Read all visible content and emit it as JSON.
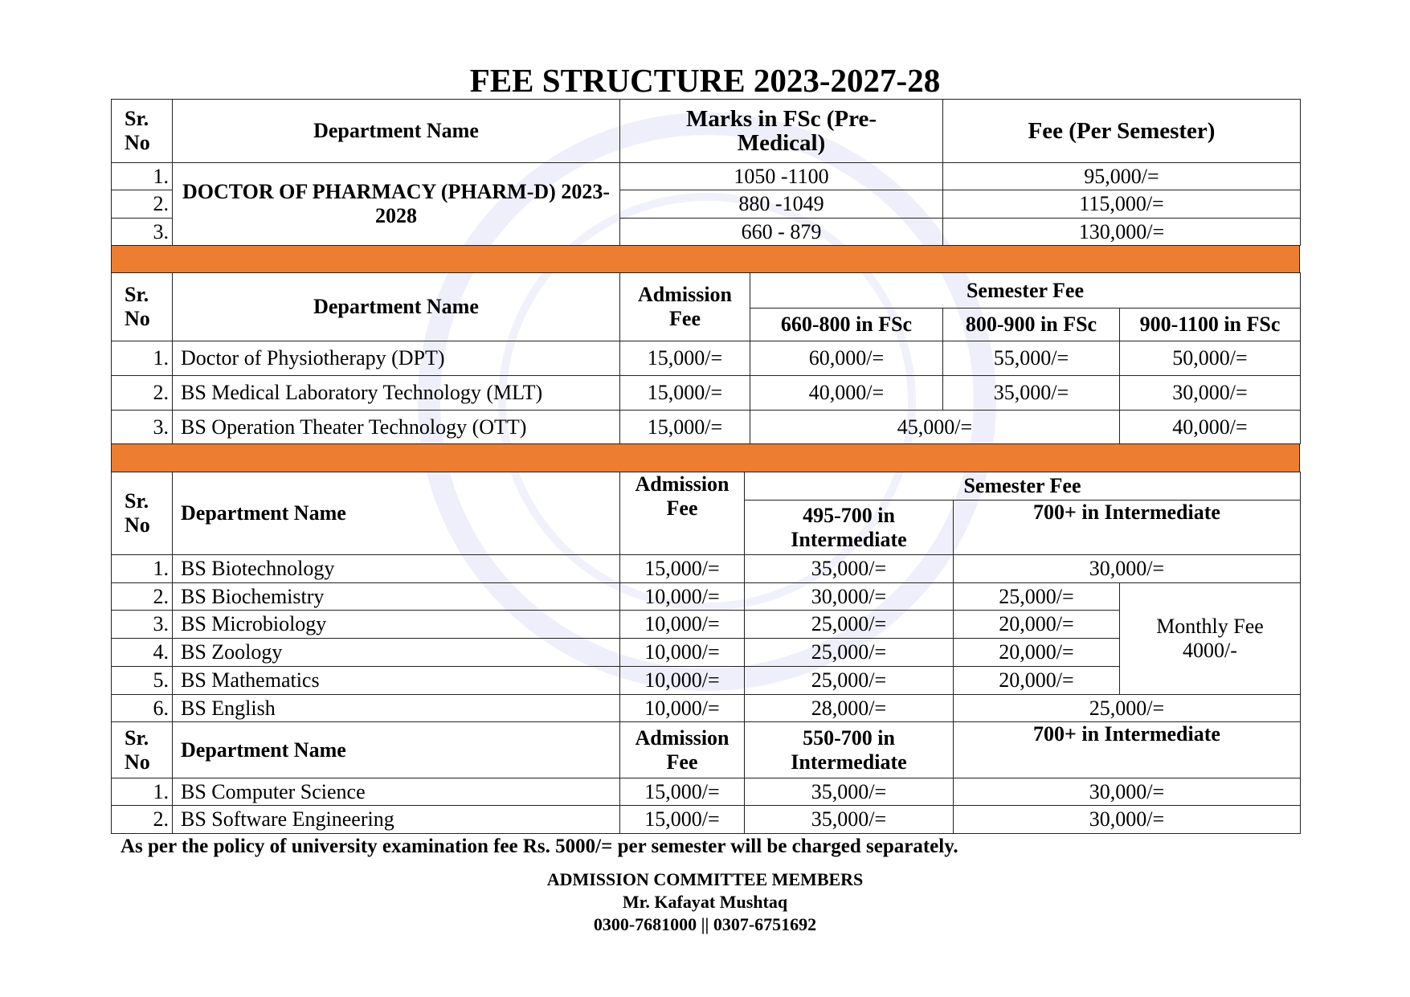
{
  "title": "FEE STRUCTURE 2023-2027-28",
  "colors": {
    "band": "#ED7D31"
  },
  "section1": {
    "headers": {
      "sr": "Sr. No",
      "dept": "Department Name",
      "marks": "Marks in FSc (Pre-Medical)",
      "fee": "Fee (Per Semester)"
    },
    "department": "DOCTOR OF PHARMACY (PHARM-D) 2023-2028",
    "rows": [
      {
        "sr": "1.",
        "marks": "1050 -1100",
        "fee": "95,000/="
      },
      {
        "sr": "2.",
        "marks": "880 -1049",
        "fee": "115,000/="
      },
      {
        "sr": "3.",
        "marks": "660 - 879",
        "fee": "130,000/="
      }
    ]
  },
  "section2": {
    "headers": {
      "sr": "Sr. No",
      "dept": "Department Name",
      "admission": "Admission Fee",
      "semester": "Semester Fee",
      "band1": "660-800 in FSc",
      "band2": "800-900 in FSc",
      "band3": "900-1100 in FSc"
    },
    "rows": [
      {
        "sr": "1.",
        "dept": "Doctor of Physiotherapy (DPT)",
        "admission": "15,000/=",
        "b1": "60,000/=",
        "b2": "55,000/=",
        "b3": "50,000/="
      },
      {
        "sr": "2.",
        "dept": "BS Medical Laboratory Technology (MLT)",
        "admission": "15,000/=",
        "b1": "40,000/=",
        "b2": "35,000/=",
        "b3": "30,000/="
      },
      {
        "sr": "3.",
        "dept": "BS Operation Theater Technology (OTT)",
        "admission": "15,000/=",
        "b12": "45,000/=",
        "b3": "40,000/="
      }
    ]
  },
  "section3": {
    "headers": {
      "sr": "Sr. No",
      "dept": "Department Name",
      "admission": "Admission Fee",
      "semester": "Semester Fee",
      "band1": "495-700 in Intermediate",
      "band2": "700+ in Intermediate"
    },
    "rows": [
      {
        "sr": "1.",
        "dept": "BS Biotechnology",
        "admission": "15,000/=",
        "b1": "35,000/=",
        "b2": "30,000/="
      },
      {
        "sr": "2.",
        "dept": "BS Biochemistry",
        "admission": "10,000/=",
        "b1": "30,000/=",
        "b2": "25,000/="
      },
      {
        "sr": "3.",
        "dept": "BS Microbiology",
        "admission": "10,000/=",
        "b1": "25,000/=",
        "b2": "20,000/="
      },
      {
        "sr": "4.",
        "dept": "BS Zoology",
        "admission": "10,000/=",
        "b1": "25,000/=",
        "b2": "20,000/="
      },
      {
        "sr": "5.",
        "dept": "BS Mathematics",
        "admission": "10,000/=",
        "b1": "25,000/=",
        "b2": "20,000/="
      },
      {
        "sr": "6.",
        "dept": "BS English",
        "admission": "10,000/=",
        "b1": "28,000/=",
        "b2": "25,000/="
      }
    ],
    "monthly_fee": "Monthly Fee 4000/-"
  },
  "section4": {
    "headers": {
      "sr": "Sr. No",
      "dept": "Department Name",
      "admission": "Admission Fee",
      "band1": "550-700 in Intermediate",
      "band2": "700+ in Intermediate"
    },
    "rows": [
      {
        "sr": "1.",
        "dept": "BS Computer Science",
        "admission": "15,000/=",
        "b1": "35,000/=",
        "b2": "30,000/="
      },
      {
        "sr": "2.",
        "dept": "BS Software Engineering",
        "admission": "15,000/=",
        "b1": "35,000/=",
        "b2": "30,000/="
      }
    ]
  },
  "note": "As per the policy of university examination fee Rs. 5000/= per semester will be charged separately.",
  "footer": {
    "heading": "ADMISSION COMMITTEE MEMBERS",
    "name": "Mr. Kafayat Mushtaq",
    "phones": "0300-7681000 || 0307-6751692"
  }
}
